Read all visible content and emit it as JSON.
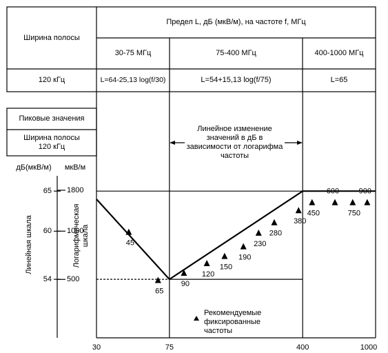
{
  "table": {
    "header_left": "Ширина полосы",
    "header_main": "Предел L, дБ (мкВ/м), на частоте f, МГц",
    "ranges": [
      "30-75 МГц",
      "75-400 МГц",
      "400-1000 МГц"
    ],
    "row_label": "120 кГц",
    "formulas": [
      "L=64-25,13 log(f/30)",
      "L=54+15,13 log(f/75)",
      "L=65"
    ]
  },
  "left_boxes": [
    "Пиковые значения",
    "Ширина полосы 120 кГц"
  ],
  "chart_data": {
    "type": "line",
    "x": [
      30,
      75,
      400,
      1000
    ],
    "xlim": [
      30,
      1000
    ],
    "xticks": [
      30,
      75,
      400,
      1000
    ],
    "xscale": "log",
    "ylim": [
      46.7,
      77.4
    ],
    "yticks": [
      54,
      60,
      65
    ],
    "ylabel": "дБ(мкВ/м)",
    "y_scale_label": "Линейная шкала",
    "y2lim": [
      216,
      7413
    ],
    "y2ticks": [
      500,
      1000,
      1800
    ],
    "y2scale": "log",
    "y2label": "мкВ/м",
    "y2_scale_label": "Логарифмическая шкала",
    "color": "#000000",
    "series": [
      {
        "values": [
          64,
          54,
          65,
          65
        ]
      }
    ],
    "markers": {
      "name": "Рекомендуемые фиксированные частоты",
      "marker": "triangle",
      "x": [
        45,
        65,
        90,
        120,
        150,
        190,
        230,
        280,
        380,
        450,
        600,
        750,
        900
      ],
      "values": [
        60.4,
        54.4,
        55.3,
        56.5,
        57.4,
        58.6,
        60.3,
        61.6,
        63.1,
        64.1,
        64.1,
        64.1,
        64.1
      ]
    },
    "annotation": "Линейное изменение значений в дБ в зависимости от логарифма частоты"
  }
}
